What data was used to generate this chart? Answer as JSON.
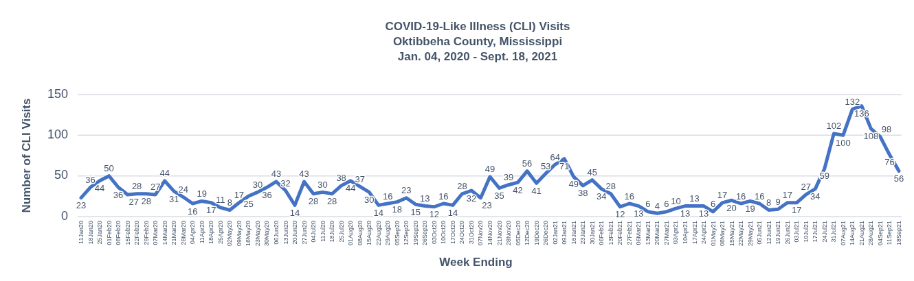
{
  "chart_data": {
    "type": "line",
    "title": "COVID-19-Like Illness (CLI) Visits\nOktibbeha County, Mississippi\nJan. 04, 2020 - Sept. 18, 2021",
    "xlabel": "Week Ending",
    "ylabel": "Number of CLI Visits",
    "categories": [
      "11Jan20",
      "18Jan20",
      "25Jan20",
      "01Feb20",
      "08Feb20",
      "15Feb20",
      "22Feb20",
      "29Feb20",
      "07Mar20",
      "14Mar20",
      "21Mar20",
      "28Mar20",
      "04Apr20",
      "11Apr20",
      "18Apr20",
      "25Apr20",
      "02May20",
      "09May20",
      "16May20",
      "23May20",
      "30May20",
      "06Jun20",
      "13Jun20",
      "20Jun20",
      "27Jun20",
      "04Jul20",
      "11Jul20",
      "18Jul20",
      "25Jul20",
      "01Aug20",
      "08Aug20",
      "15Aug20",
      "22Aug20",
      "29Aug20",
      "05Sep20",
      "12Sep20",
      "19Sep20",
      "26Sep20",
      "03Oct20",
      "10Oct20",
      "17Oct20",
      "24Oct20",
      "31Oct20",
      "07Nov20",
      "14Nov20",
      "21Nov20",
      "28Nov20",
      "05Dec20",
      "12Dec20",
      "19Dec20",
      "26Dec20",
      "02Jan21",
      "09Jan21",
      "16Jan21",
      "23Jan21",
      "30Jan21",
      "06Feb21",
      "13Feb21",
      "20Feb21",
      "27Feb21",
      "06Mar21",
      "13Mar21",
      "20Mar21",
      "27Mar21",
      "03Apr21",
      "10Apr21",
      "17Apr21",
      "24Apr21",
      "01May21",
      "08May21",
      "15May21",
      "22May21",
      "29May21",
      "05Jun21",
      "12Jun21",
      "19Jun21",
      "26Jun21",
      "03Jul21",
      "10Jul21",
      "17Jul21",
      "24Jul21",
      "31Jul21",
      "07Aug21",
      "14Aug21",
      "21Aug21",
      "28Aug21",
      "04Sep21",
      "11Sep21",
      "18Sep21"
    ],
    "series": [
      {
        "color": "#4472c4",
        "values": [
          23,
          36,
          44,
          50,
          36,
          27,
          28,
          28,
          27,
          44,
          31,
          24,
          16,
          19,
          17,
          11,
          8,
          17,
          25,
          30,
          36,
          43,
          32,
          14,
          43,
          28,
          30,
          28,
          38,
          44,
          37,
          30,
          14,
          16,
          18,
          23,
          15,
          13,
          12,
          16,
          14,
          28,
          32,
          23,
          49,
          35,
          39,
          42,
          56,
          41,
          53,
          64,
          71,
          49,
          38,
          45,
          34,
          28,
          12,
          16,
          13,
          6,
          4,
          6,
          10,
          13,
          13,
          13,
          6,
          17,
          20,
          16,
          19,
          16,
          8,
          9,
          17,
          17,
          27,
          34,
          59,
          102,
          100,
          132,
          136,
          108,
          98,
          76,
          56
        ]
      }
    ],
    "ylim": [
      0,
      150
    ],
    "yticks": [
      0,
      50,
      100,
      150
    ],
    "grid": "y",
    "data_labels": true,
    "marker": "none",
    "line_style": "solid"
  }
}
